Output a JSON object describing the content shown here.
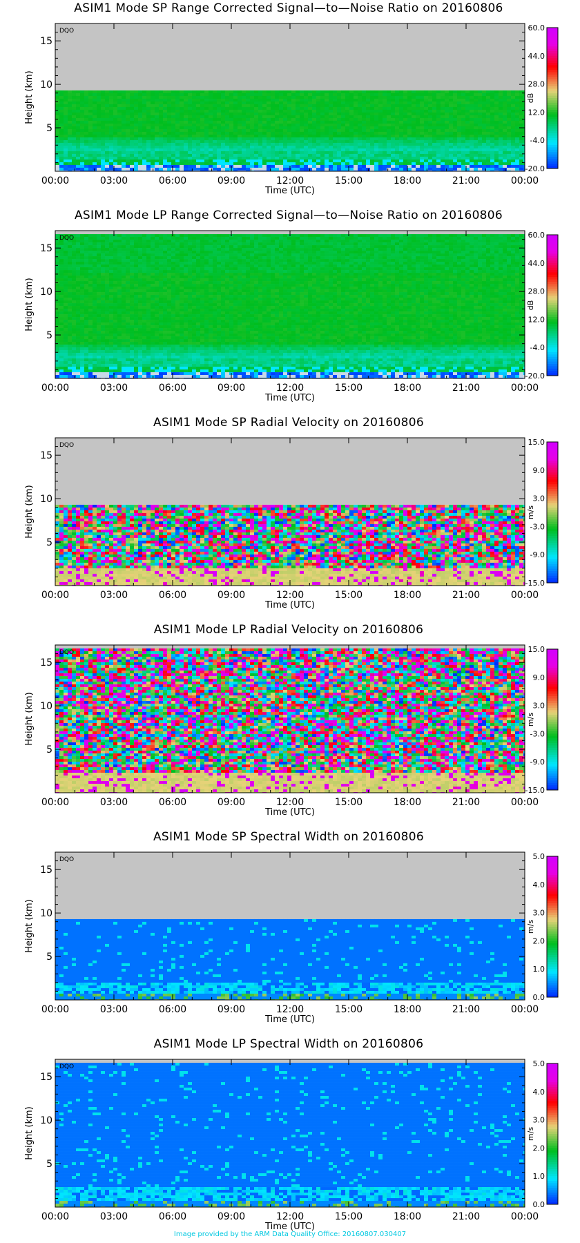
{
  "footer": "Image provided by the ARM Data Quality Office: 20160807.030407",
  "chart_data": [
    {
      "type": "heatmap",
      "title": "ASIM1 Mode SP Range Corrected Signal—to—Noise Ratio on 20160806",
      "xlabel": "Time (UTC)",
      "ylabel": "Height (km)",
      "xticks": [
        "00:00",
        "03:00",
        "06:00",
        "09:00",
        "12:00",
        "15:00",
        "18:00",
        "21:00",
        "00:00"
      ],
      "yticks": [
        5,
        10,
        15
      ],
      "ylim": [
        0,
        17
      ],
      "xlim_hours": [
        0,
        24
      ],
      "flag": "DQO",
      "colorbar": {
        "unit": "dB",
        "ticks": [
          "60.0",
          "44.0",
          "28.0",
          "12.0",
          "-4.0",
          "-20.0"
        ],
        "range": [
          -20,
          60
        ]
      },
      "data_top_km": 9.3,
      "fill_above": "#c4c4c4",
      "profile": "snr_sp"
    },
    {
      "type": "heatmap",
      "title": "ASIM1 Mode LP Range Corrected Signal—to—Noise Ratio on 20160806",
      "xlabel": "Time (UTC)",
      "ylabel": "Height (km)",
      "xticks": [
        "00:00",
        "03:00",
        "06:00",
        "09:00",
        "12:00",
        "15:00",
        "18:00",
        "21:00",
        "00:00"
      ],
      "yticks": [
        5,
        10,
        15
      ],
      "ylim": [
        0,
        17
      ],
      "xlim_hours": [
        0,
        24
      ],
      "flag": "DQO",
      "colorbar": {
        "unit": "dB",
        "ticks": [
          "60.0",
          "44.0",
          "28.0",
          "12.0",
          "-4.0",
          "-20.0"
        ],
        "range": [
          -20,
          60
        ]
      },
      "data_top_km": 16.6,
      "fill_above": "#c4c4c4",
      "profile": "snr_lp"
    },
    {
      "type": "heatmap",
      "title": "ASIM1 Mode SP Radial Velocity  on 20160806",
      "xlabel": "Time (UTC)",
      "ylabel": "Height (km)",
      "xticks": [
        "00:00",
        "03:00",
        "06:00",
        "09:00",
        "12:00",
        "15:00",
        "18:00",
        "21:00",
        "00:00"
      ],
      "yticks": [
        5,
        10,
        15
      ],
      "ylim": [
        0,
        17
      ],
      "xlim_hours": [
        0,
        24
      ],
      "flag": "DQO",
      "colorbar": {
        "unit": "m/s",
        "ticks": [
          "15.0",
          "9.0",
          "3.0",
          "-3.0",
          "-9.0",
          "-15.0"
        ],
        "range": [
          -15,
          15
        ]
      },
      "data_top_km": 9.3,
      "fill_above": "#c4c4c4",
      "profile": "vel_sp"
    },
    {
      "type": "heatmap",
      "title": "ASIM1 Mode LP Radial Velocity  on 20160806",
      "xlabel": "Time (UTC)",
      "ylabel": "Height (km)",
      "xticks": [
        "00:00",
        "03:00",
        "06:00",
        "09:00",
        "12:00",
        "15:00",
        "18:00",
        "21:00",
        "00:00"
      ],
      "yticks": [
        5,
        10,
        15
      ],
      "ylim": [
        0,
        17
      ],
      "xlim_hours": [
        0,
        24
      ],
      "flag": "DQO",
      "colorbar": {
        "unit": "m/s",
        "ticks": [
          "15.0",
          "9.0",
          "3.0",
          "-3.0",
          "-9.0",
          "-15.0"
        ],
        "range": [
          -15,
          15
        ]
      },
      "data_top_km": 16.6,
      "fill_above": "#c4c4c4",
      "profile": "vel_lp"
    },
    {
      "type": "heatmap",
      "title": "ASIM1 Mode SP Spectral Width  on 20160806",
      "xlabel": "Time (UTC)",
      "ylabel": "Height (km)",
      "xticks": [
        "00:00",
        "03:00",
        "06:00",
        "09:00",
        "12:00",
        "15:00",
        "18:00",
        "21:00",
        "00:00"
      ],
      "yticks": [
        5,
        10,
        15
      ],
      "ylim": [
        0,
        17
      ],
      "xlim_hours": [
        0,
        24
      ],
      "flag": "DQO",
      "colorbar": {
        "unit": "m/s",
        "ticks": [
          "5.0",
          "4.0",
          "3.0",
          "2.0",
          "1.0",
          "0.0"
        ],
        "range": [
          0,
          5
        ]
      },
      "data_top_km": 9.3,
      "fill_above": "#c4c4c4",
      "profile": "sw_sp"
    },
    {
      "type": "heatmap",
      "title": "ASIM1 Mode LP Spectral Width  on 20160806",
      "xlabel": "Time (UTC)",
      "ylabel": "Height (km)",
      "xticks": [
        "00:00",
        "03:00",
        "06:00",
        "09:00",
        "12:00",
        "15:00",
        "18:00",
        "21:00",
        "00:00"
      ],
      "yticks": [
        5,
        10,
        15
      ],
      "ylim": [
        0,
        17
      ],
      "xlim_hours": [
        0,
        24
      ],
      "flag": "DQO",
      "colorbar": {
        "unit": "m/s",
        "ticks": [
          "5.0",
          "4.0",
          "3.0",
          "2.0",
          "1.0",
          "0.0"
        ],
        "range": [
          0,
          5
        ]
      },
      "data_top_km": 16.6,
      "fill_above": "#c4c4c4",
      "profile": "sw_lp"
    }
  ]
}
